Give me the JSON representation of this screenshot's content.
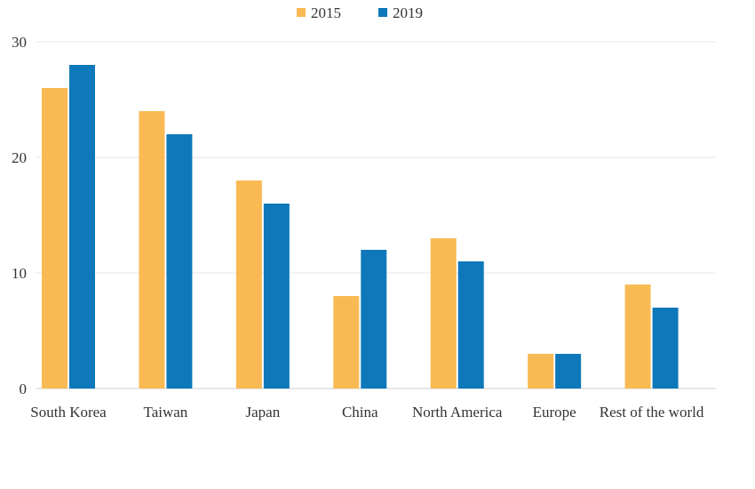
{
  "chart_data": {
    "type": "bar",
    "title": "",
    "xlabel": "",
    "ylabel": "",
    "categories": [
      "South Korea",
      "Taiwan",
      "Japan",
      "China",
      "North America",
      "Europe",
      "Rest of the world"
    ],
    "series": [
      {
        "name": "2015",
        "color": "#F9BA54",
        "values": [
          26,
          24,
          18,
          8,
          13,
          3,
          9
        ]
      },
      {
        "name": "2019",
        "color": "#0E78BA",
        "values": [
          28,
          22,
          16,
          12,
          11,
          3,
          7
        ]
      }
    ],
    "ylim": [
      0,
      30
    ],
    "yticks": [
      "0",
      "10",
      "20",
      "30"
    ],
    "grid": true,
    "legend_position": "top-center"
  }
}
